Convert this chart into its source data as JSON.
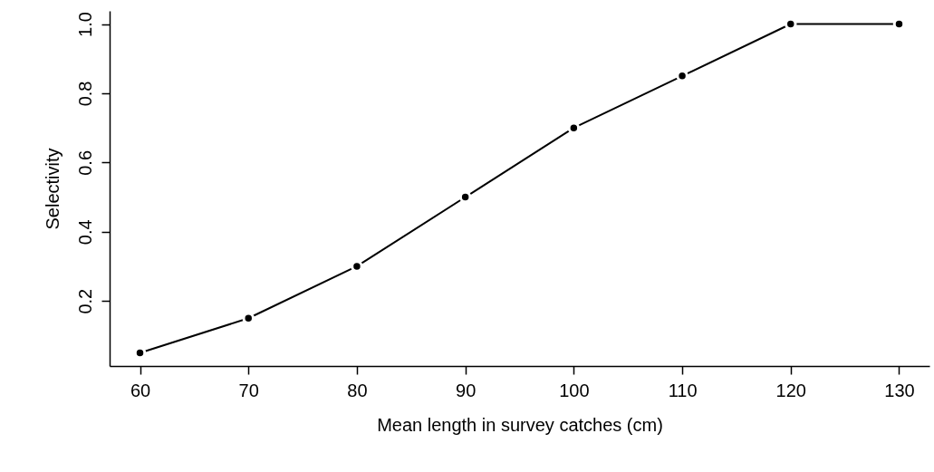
{
  "chart_data": {
    "type": "line",
    "xlabel": "Mean length in survey catches (cm)",
    "ylabel": "Selectivity",
    "x": [
      60,
      70,
      80,
      90,
      100,
      110,
      120,
      130
    ],
    "series": [
      {
        "color": "#000000",
        "values": [
          0.05,
          0.15,
          0.3,
          0.5,
          0.7,
          0.85,
          1.0,
          1.0
        ]
      }
    ],
    "xlim": [
      57.2,
      132.8
    ],
    "ylim": [
      0.012,
      1.038
    ],
    "xticks": [
      60,
      70,
      80,
      90,
      100,
      110,
      120,
      130
    ],
    "yticks": [
      0.2,
      0.4,
      0.6,
      0.8,
      {
        "value": 1,
        "label": "1.0"
      }
    ],
    "marker": "circle",
    "grid": false
  }
}
